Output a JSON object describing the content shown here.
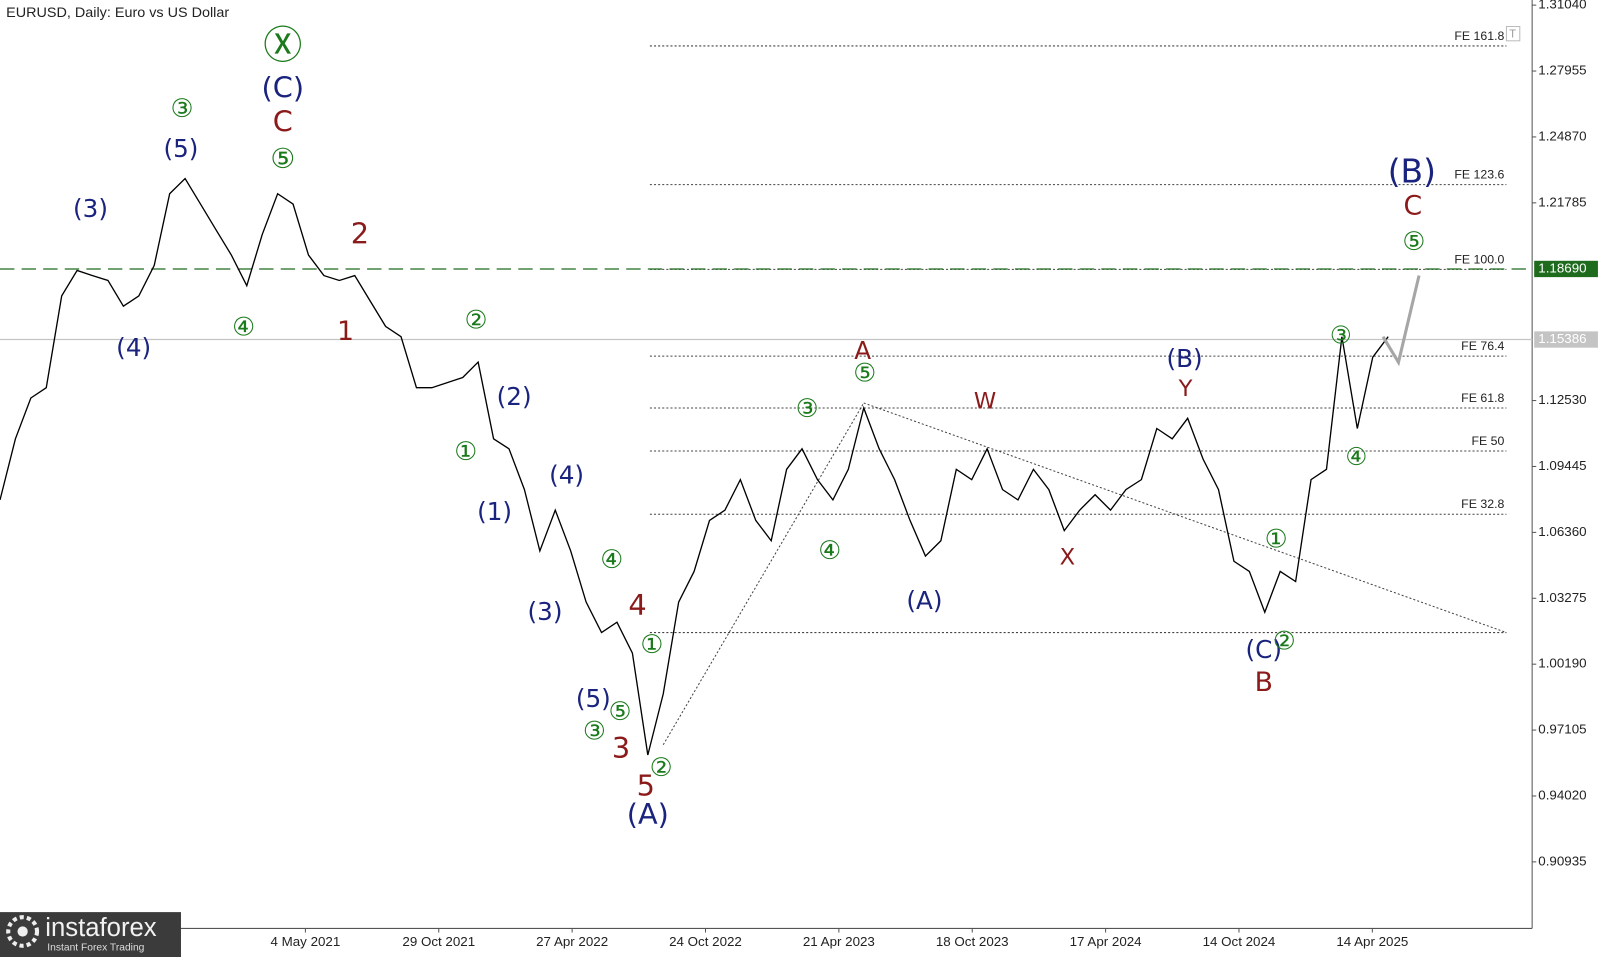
{
  "header": {
    "title": "EURUSD, Daily:  Euro vs US Dollar"
  },
  "logo": {
    "name": "instaforex",
    "tagline": "Instant Forex Trading"
  },
  "chart_data": {
    "type": "line",
    "ylim": [
      0.8782,
      1.3128
    ],
    "yticks": [
      {
        "value": 1.3104,
        "label": "1.31040"
      },
      {
        "value": 1.27955,
        "label": "1.27955"
      },
      {
        "value": 1.2487,
        "label": "1.24870"
      },
      {
        "value": 1.21785,
        "label": "1.21785"
      },
      {
        "value": 1.1253,
        "label": "1.12530"
      },
      {
        "value": 1.09445,
        "label": "1.09445"
      },
      {
        "value": 1.0636,
        "label": "1.06360"
      },
      {
        "value": 1.03275,
        "label": "1.03275"
      },
      {
        "value": 1.0019,
        "label": "1.00190"
      },
      {
        "value": 0.97105,
        "label": "0.97105"
      },
      {
        "value": 0.9402,
        "label": "0.94020"
      },
      {
        "value": 0.90935,
        "label": "0.90935"
      }
    ],
    "x_labels": [
      "4 May 2021",
      "29 Oct 2021",
      "27 Apr 2022",
      "24 Oct 2022",
      "21 Apr 2023",
      "18 Oct 2023",
      "17 Apr 2024",
      "14 Oct 2024",
      "14 Apr 2025"
    ],
    "series": [
      {
        "color": "#000000",
        "values": [
          1.0788,
          1.1074,
          1.1265,
          1.1313,
          1.1743,
          1.1862,
          1.1838,
          1.1815,
          1.1695,
          1.1743,
          1.1886,
          1.2221,
          1.2292,
          1.2173,
          1.2053,
          1.1934,
          1.1791,
          1.203,
          1.2221,
          1.2173,
          1.1934,
          1.1838,
          1.1815,
          1.1838,
          1.1719,
          1.16,
          1.1552,
          1.1313,
          1.1313,
          1.1337,
          1.1361,
          1.1433,
          1.1074,
          1.1027,
          1.0836,
          1.0549,
          1.074,
          1.0549,
          1.031,
          1.0167,
          1.0215,
          1.0071,
          0.9594,
          0.988,
          1.031,
          1.0453,
          1.0692,
          1.074,
          1.0883,
          1.0692,
          1.0597,
          1.0931,
          1.1027,
          1.0883,
          1.0788,
          1.0931,
          1.1218,
          1.1027,
          1.0883,
          1.0692,
          1.0525,
          1.0597,
          1.0931,
          1.0883,
          1.1027,
          1.0836,
          1.0788,
          1.0931,
          1.0836,
          1.0644,
          1.074,
          1.0812,
          1.074,
          1.0836,
          1.0883,
          1.1122,
          1.1074,
          1.117,
          1.0979,
          1.0836,
          1.0501,
          1.0453,
          1.0262,
          1.0453,
          1.0406,
          1.0883,
          1.0931,
          1.1552,
          1.1122,
          1.1456,
          1.1552
        ]
      }
    ],
    "forecast": {
      "color": "#a6a6a6",
      "values": [
        1.1552,
        1.1432,
        1.1838
      ]
    },
    "price_lines": [
      {
        "value": 1.1869,
        "label": "1.18690",
        "color": "#1e6b1e",
        "dashed": true
      },
      {
        "value": 1.15386,
        "label": "1.15386",
        "color": "#c4c4c4",
        "dashed": false
      }
    ],
    "fe_levels": [
      {
        "value": 1.2913,
        "label": "FE 161.8"
      },
      {
        "value": 1.2264,
        "label": "FE 123.6"
      },
      {
        "value": 1.1867,
        "label": "FE 100.0"
      },
      {
        "value": 1.1461,
        "label": "FE 76.4"
      },
      {
        "value": 1.1218,
        "label": "FE 61.8"
      },
      {
        "value": 1.1017,
        "label": "FE 50"
      },
      {
        "value": 1.0721,
        "label": "FE 32.8"
      },
      {
        "value": 1.0167
      }
    ],
    "wave_labels": [
      {
        "text": "Ⓧ",
        "color": "#1b7a1b"
      },
      {
        "text": "(C)",
        "color": "#1a237e"
      },
      {
        "text": "C",
        "color": "#8b1a1a"
      },
      {
        "text": "⑤",
        "color": "#1b7a1b"
      },
      {
        "text": "③",
        "color": "#1b7a1b"
      },
      {
        "text": "(5)",
        "color": "#1a237e"
      },
      {
        "text": "(3)",
        "color": "#1a237e"
      },
      {
        "text": "(4)",
        "color": "#1a237e"
      },
      {
        "text": "④",
        "color": "#1b7a1b"
      },
      {
        "text": "2",
        "color": "#8b1a1a"
      },
      {
        "text": "1",
        "color": "#8b1a1a"
      },
      {
        "text": "②",
        "color": "#1b7a1b"
      },
      {
        "text": "(2)",
        "color": "#1a237e"
      },
      {
        "text": "①",
        "color": "#1b7a1b"
      },
      {
        "text": "(1)",
        "color": "#1a237e"
      },
      {
        "text": "(4)",
        "color": "#1a237e"
      },
      {
        "text": "(3)",
        "color": "#1a237e"
      },
      {
        "text": "④",
        "color": "#1b7a1b"
      },
      {
        "text": "4",
        "color": "#8b1a1a"
      },
      {
        "text": "①",
        "color": "#1b7a1b"
      },
      {
        "text": "(5)",
        "color": "#1a237e"
      },
      {
        "text": "⑤",
        "color": "#1b7a1b"
      },
      {
        "text": "③",
        "color": "#1b7a1b"
      },
      {
        "text": "3",
        "color": "#8b1a1a"
      },
      {
        "text": "②",
        "color": "#1b7a1b"
      },
      {
        "text": "5",
        "color": "#8b1a1a"
      },
      {
        "text": "(A)",
        "color": "#1a237e"
      },
      {
        "text": "A",
        "color": "#8b1a1a"
      },
      {
        "text": "⑤",
        "color": "#1b7a1b"
      },
      {
        "text": "③",
        "color": "#1b7a1b"
      },
      {
        "text": "④",
        "color": "#1b7a1b"
      },
      {
        "text": "(A)",
        "color": "#1a237e"
      },
      {
        "text": "W",
        "color": "#8b1a1a"
      },
      {
        "text": "X",
        "color": "#8b1a1a"
      },
      {
        "text": "(B)",
        "color": "#1a237e"
      },
      {
        "text": "Y",
        "color": "#8b1a1a"
      },
      {
        "text": "①",
        "color": "#1b7a1b"
      },
      {
        "text": "(C)",
        "color": "#1a237e"
      },
      {
        "text": "②",
        "color": "#1b7a1b"
      },
      {
        "text": "B",
        "color": "#8b1a1a"
      },
      {
        "text": "③",
        "color": "#1b7a1b"
      },
      {
        "text": "④",
        "color": "#1b7a1b"
      },
      {
        "text": "(B)",
        "color": "#1a237e"
      },
      {
        "text": "C",
        "color": "#8b1a1a"
      },
      {
        "text": "⑤",
        "color": "#1b7a1b"
      }
    ]
  }
}
